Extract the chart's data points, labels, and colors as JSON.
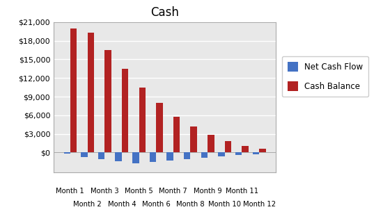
{
  "title": "Cash",
  "categories": [
    "Month 1",
    "Month 2",
    "Month 3",
    "Month 4",
    "Month 5",
    "Month 6",
    "Month 7",
    "Month 8",
    "Month 9",
    "Month 10",
    "Month 11",
    "Month 12"
  ],
  "net_cash_flow": [
    -200,
    -700,
    -1100,
    -1400,
    -1700,
    -1500,
    -1300,
    -1100,
    -800,
    -600,
    -400,
    -300
  ],
  "cash_balance": [
    20000,
    19300,
    16500,
    13500,
    10500,
    8000,
    5800,
    4200,
    2800,
    1800,
    1100,
    600
  ],
  "bar_color_ncf": "#4472C4",
  "bar_color_cb": "#B22222",
  "ylim_min": -3200,
  "ylim_max": 21000,
  "yticks": [
    0,
    3000,
    6000,
    9000,
    12000,
    15000,
    18000,
    21000
  ],
  "legend_labels": [
    "Net Cash Flow",
    "Cash Balance"
  ],
  "background_color": "#FFFFFF",
  "plot_bg_color": "#E8E8E8",
  "grid_color": "#FFFFFF",
  "title_fontsize": 12
}
